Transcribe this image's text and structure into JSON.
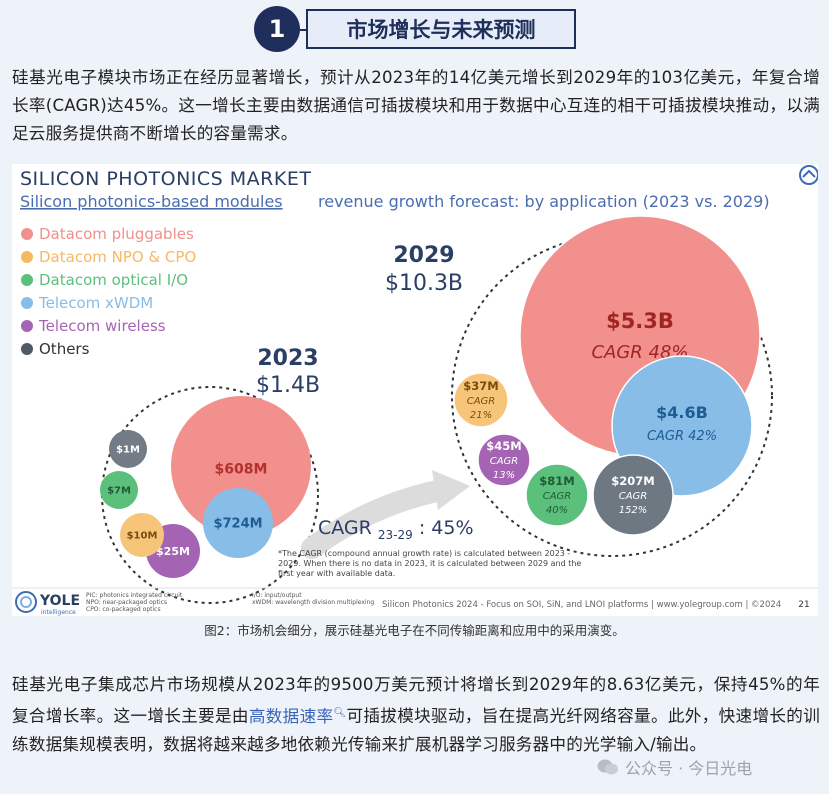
{
  "section": {
    "number": "1",
    "title": "市场增长与未来预测"
  },
  "para1": "硅基光电子模块市场正在经历显著增长，预计从2023年的14亿美元增长到2029年的103亿美元，年复合增长率(CAGR)达45%。这一增长主要由数据通信可插拔模块和用于数据中心互连的相干可插拔模块推动，以满足云服务提供商不断增长的容量需求。",
  "chart": {
    "main_title": "SILICON PHOTONICS MARKET",
    "subtitle_link": "Silicon photonics-based modules",
    "subtitle_rest": "revenue growth forecast: by application (2023 vs. 2029)",
    "legend": [
      {
        "label": "Datacom pluggables",
        "color": "#f1908c"
      },
      {
        "label": "Datacom NPO & CPO",
        "color": "#f6b95f"
      },
      {
        "label": "Datacom optical I/O",
        "color": "#5cc07d"
      },
      {
        "label": "Telecom xWDM",
        "color": "#88bde7"
      },
      {
        "label": "Telecom wireless",
        "color": "#a564b3"
      },
      {
        "label": "Others",
        "color": "#4e5a66"
      }
    ],
    "year_2023": {
      "year": "2023",
      "total": "$1.4B"
    },
    "year_2029": {
      "year": "2029",
      "total": "$10.3B"
    },
    "bubbles_2023": [
      {
        "label": "$608M",
        "color": "#f1908c",
        "text_color": "#b3312e"
      },
      {
        "label": "$724M",
        "color": "#88bde7",
        "text_color": "#1e5c95"
      },
      {
        "label": "$25M",
        "color": "#a564b3",
        "text_color": "#ffffff"
      },
      {
        "label": "$10M",
        "color": "#f6c57a",
        "text_color": "#7a4c0c"
      },
      {
        "label": "$7M",
        "color": "#5cc07d",
        "text_color": "#1f5a33"
      },
      {
        "label": "$1M",
        "color": "#717c87",
        "text_color": "#ffffff"
      }
    ],
    "bubbles_2029": [
      {
        "value": "$5.3B",
        "cagr_label": "CAGR 48%",
        "color": "#f1908c",
        "text_color": "#a12623"
      },
      {
        "value": "$4.6B",
        "cagr_label": "CAGR 42%",
        "color": "#88bde7",
        "text_color": "#1e5c95"
      },
      {
        "value": "$207M",
        "cagr_label": "CAGR",
        "cagr_value": "152%",
        "color": "#6d7883",
        "text_color": "#ffffff"
      },
      {
        "value": "$81M",
        "cagr_label": "CAGR",
        "cagr_value": "40%",
        "color": "#5cc07d",
        "text_color": "#1f5a33"
      },
      {
        "value": "$45M",
        "cagr_label": "CAGR",
        "cagr_value": "13%",
        "color": "#a564b3",
        "text_color": "#ffffff"
      },
      {
        "value": "$37M",
        "cagr_label": "CAGR",
        "cagr_value": "21%",
        "color": "#f6c57a",
        "text_color": "#7a4c0c"
      }
    ],
    "cagr_arrow": {
      "prefix": "CAGR",
      "sub": "23-29",
      "value": ": 45%"
    },
    "footnote": [
      "*The CAGR (compound annual growth rate) is calculated between 2023 -",
      "2029. When there is no data in 2023, it is calculated between 2029 and the",
      "first year with available data."
    ],
    "logo_text": "YOLE",
    "logo_sub": "intelligence",
    "abbrev_left": [
      "PIC: photonics integrated circuit",
      "NPO: near-packaged optics",
      "CPO: co-packaged optics"
    ],
    "abbrev_mid": [
      "I/O: input/output",
      "xWDM: wavelength division multiplexing"
    ],
    "footer_source": "Silicon Photonics 2024 - Focus on SOI, SiN, and LNOI platforms | www.yolegroup.com | ©2024",
    "page_number": "21"
  },
  "caption": "图2：市场机会细分，展示硅基光电子在不同传输距离和应用中的采用演变。",
  "para2": {
    "before": "硅基光电子集成芯片市场规模从2023年的9500万美元预计将增长到2029年的8.63亿美元，保持45%的年复合增长率。这一增长主要是由",
    "link": "高数据速率",
    "after": "可插拔模块驱动，旨在提高光纤网络容量。此外，快速增长的训练数据集规模表明，数据将越来越多地依赖光传输来扩展机器学习服务器中的光学输入/输出。"
  },
  "watermark": "公众号 · 今日光电"
}
